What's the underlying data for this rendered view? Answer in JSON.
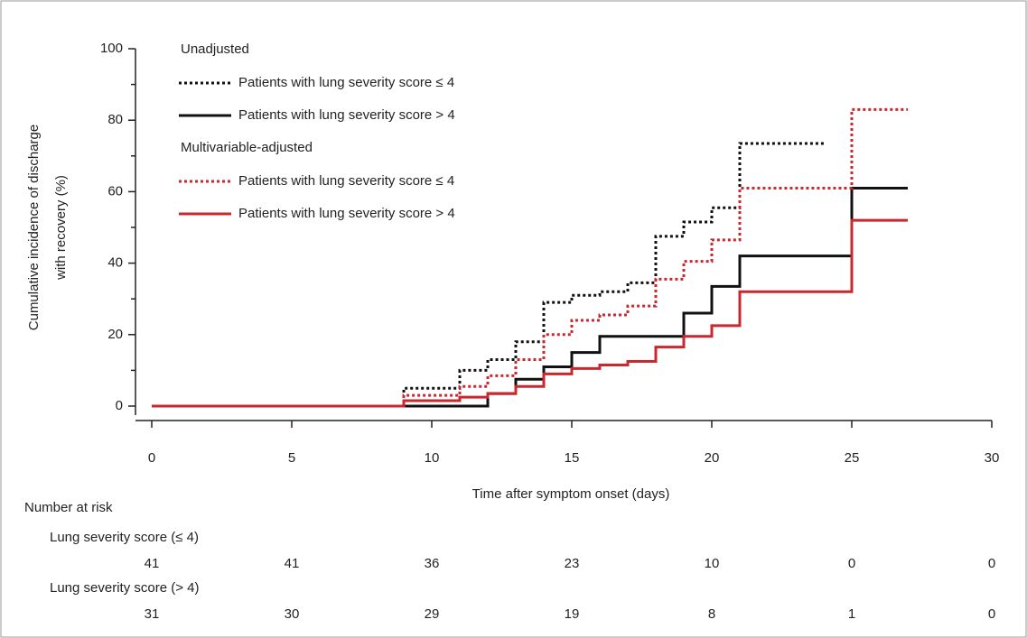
{
  "chart_data": {
    "type": "step",
    "ylabel": [
      "Cumulative incidence of discharge",
      "with recovery (%)"
    ],
    "xlabel": "Time after symptom onset (days)",
    "xlim": [
      0,
      30
    ],
    "xticks": [
      0,
      5,
      10,
      15,
      20,
      25,
      30
    ],
    "ylim": [
      0,
      100
    ],
    "yticks": [
      0,
      20,
      40,
      60,
      80,
      100
    ],
    "yminor_ticks": [
      10,
      30,
      50,
      70,
      90
    ],
    "legend_groups": [
      {
        "title": "Unadjusted"
      },
      {
        "title": "Multivariable-adjusted"
      }
    ],
    "series": [
      {
        "name": "Patients with lung severity score ≤ 4",
        "group": 0,
        "color": "#111111",
        "dashed": true,
        "x": [
          0,
          9,
          11,
          12,
          13,
          14,
          15,
          16,
          17,
          18,
          19,
          20,
          21,
          24
        ],
        "values": [
          0,
          5,
          10,
          13,
          18,
          29,
          31,
          32,
          34.5,
          47.5,
          51.5,
          55.5,
          73.5,
          73.5
        ]
      },
      {
        "name": "Patients with lung severity score > 4",
        "group": 0,
        "color": "#111111",
        "dashed": false,
        "x": [
          0,
          12,
          13,
          14,
          15,
          16,
          19,
          20,
          21,
          25,
          27
        ],
        "values": [
          0,
          3.5,
          7.5,
          11,
          15,
          19.5,
          26,
          33.5,
          42,
          61,
          61
        ]
      },
      {
        "name": "Patients with lung severity score ≤ 4",
        "group": 1,
        "color": "#c8282e",
        "dashed": true,
        "x": [
          0,
          9,
          11,
          12,
          13,
          14,
          15,
          16,
          17,
          18,
          19,
          20,
          21,
          25,
          27
        ],
        "values": [
          0,
          3,
          5.5,
          8.5,
          13,
          20,
          24,
          25.5,
          28,
          35.5,
          40.5,
          46.5,
          61,
          83,
          83
        ]
      },
      {
        "name": "Patients with lung severity score > 4",
        "group": 1,
        "color": "#c8282e",
        "dashed": false,
        "x": [
          0,
          9,
          11,
          12,
          13,
          14,
          15,
          16,
          17,
          18,
          19,
          20,
          21,
          25,
          27
        ],
        "values": [
          0,
          1.5,
          2.5,
          3.5,
          5.5,
          9,
          10.5,
          11.5,
          12.5,
          16.5,
          19.5,
          22.5,
          32,
          52,
          52
        ]
      }
    ],
    "risk_table": {
      "title": "Number at risk",
      "rows": [
        {
          "label": "Lung severity score (≤ 4)",
          "values": [
            41,
            41,
            36,
            23,
            10,
            0,
            0
          ]
        },
        {
          "label": "Lung severity score (> 4)",
          "values": [
            31,
            30,
            29,
            19,
            8,
            1,
            0
          ]
        }
      ]
    }
  }
}
